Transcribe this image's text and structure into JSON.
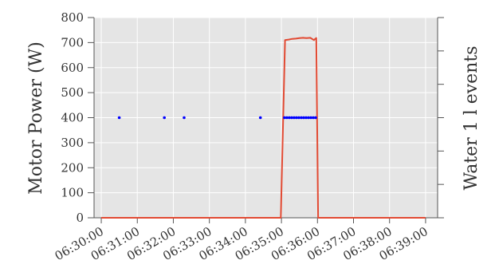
{
  "chart_data": {
    "type": "line",
    "title": "",
    "xlabel": "",
    "ylabel": "Motor Power (W)",
    "ylabel_right": "Water 1 l events",
    "ylim": [
      0,
      800
    ],
    "yticks": [
      "0",
      "100",
      "200",
      "300",
      "400",
      "500",
      "600",
      "700",
      "800"
    ],
    "xlim": [
      "06:29:48",
      "06:39:20"
    ],
    "xticks": [
      "06:30:00",
      "06:31:00",
      "06:32:00",
      "06:33:00",
      "06:34:00",
      "06:35:00",
      "06:36:00",
      "06:37:00",
      "06:38:00",
      "06:39:00"
    ],
    "grid": true,
    "background": "#e5e5e5",
    "series": [
      {
        "kind": "line",
        "color": "#e24a33",
        "x": [
          "06:30:00",
          "06:34:59",
          "06:35:06",
          "06:35:12",
          "06:35:18",
          "06:35:24",
          "06:35:30",
          "06:35:36",
          "06:35:42",
          "06:35:48",
          "06:35:54",
          "06:35:58",
          "06:36:01",
          "06:36:05",
          "06:39:00"
        ],
        "y": [
          0,
          0,
          710,
          712,
          715,
          716,
          718,
          719,
          718,
          719,
          710,
          718,
          0,
          0,
          0
        ]
      },
      {
        "kind": "scatter",
        "color": "#0000ff",
        "x": [
          "06:30:30",
          "06:31:45",
          "06:32:18",
          "06:34:25",
          "06:35:05",
          "06:35:09",
          "06:35:13",
          "06:35:17",
          "06:35:21",
          "06:35:25",
          "06:35:29",
          "06:35:33",
          "06:35:37",
          "06:35:41",
          "06:35:45",
          "06:35:49",
          "06:35:53",
          "06:35:57"
        ],
        "y": [
          400,
          400,
          400,
          400,
          400,
          400,
          400,
          400,
          400,
          400,
          400,
          400,
          400,
          400,
          400,
          400,
          400,
          400
        ]
      }
    ]
  }
}
